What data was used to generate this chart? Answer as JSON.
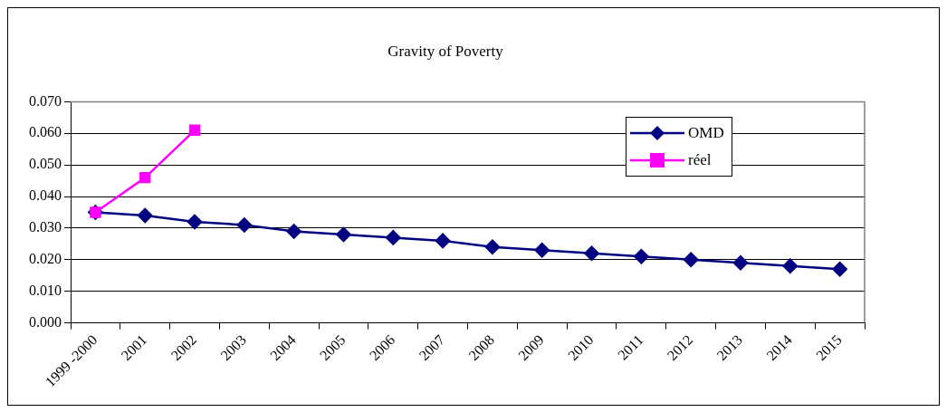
{
  "chart_data": {
    "type": "line",
    "title": "Gravity of Poverty",
    "categories": [
      "1999 -2000",
      "2001",
      "2002",
      "2003",
      "2004",
      "2005",
      "2006",
      "2007",
      "2008",
      "2009",
      "2010",
      "2011",
      "2012",
      "2013",
      "2014",
      "2015"
    ],
    "series": [
      {
        "name": "OMD",
        "color": "#000080",
        "marker": "diamond",
        "values": [
          0.035,
          0.034,
          0.032,
          0.031,
          0.029,
          0.028,
          0.027,
          0.026,
          0.024,
          0.023,
          0.022,
          0.021,
          0.02,
          0.019,
          0.018,
          0.017
        ]
      },
      {
        "name": "réel",
        "color": "#ff00ff",
        "marker": "square",
        "values": [
          0.035,
          0.046,
          0.061,
          null,
          null,
          null,
          null,
          null,
          null,
          null,
          null,
          null,
          null,
          null,
          null,
          null
        ]
      }
    ],
    "ylim": [
      0,
      0.07
    ],
    "yticks": [
      {
        "value": 0,
        "label": "0.000"
      },
      {
        "value": 0.01,
        "label": "0.010"
      },
      {
        "value": 0.02,
        "label": "0.020"
      },
      {
        "value": 0.03,
        "label": "0.030"
      },
      {
        "value": 0.04,
        "label": "0.040"
      },
      {
        "value": 0.05,
        "label": "0.050"
      },
      {
        "value": 0.06,
        "label": "0.060"
      },
      {
        "value": 0.07,
        "label": "0.070"
      }
    ],
    "grid": "y",
    "legend": "top right",
    "line_style": "solid"
  }
}
